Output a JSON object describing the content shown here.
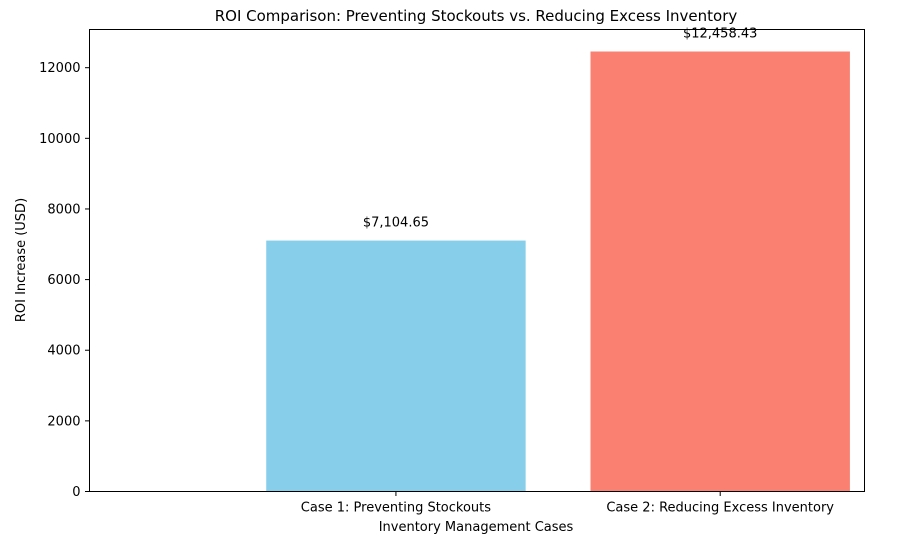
{
  "chart_data": {
    "type": "bar",
    "title": "ROI Comparison: Preventing Stockouts vs. Reducing Excess Inventory",
    "xlabel": "Inventory Management Cases",
    "ylabel": "ROI Increase (USD)",
    "categories": [
      "Case 1: Preventing Stockouts",
      "Case 2: Reducing Excess Inventory"
    ],
    "values": [
      7104.65,
      12458.43
    ],
    "data_labels": [
      "$7,104.65",
      "$12,458.43"
    ],
    "colors": [
      "#87CEEB",
      "#FA8072"
    ],
    "ylim": [
      0,
      13081.35
    ],
    "yticks": [
      0,
      2000,
      4000,
      6000,
      8000,
      10000,
      12000
    ],
    "grid": false,
    "legend": "none"
  }
}
